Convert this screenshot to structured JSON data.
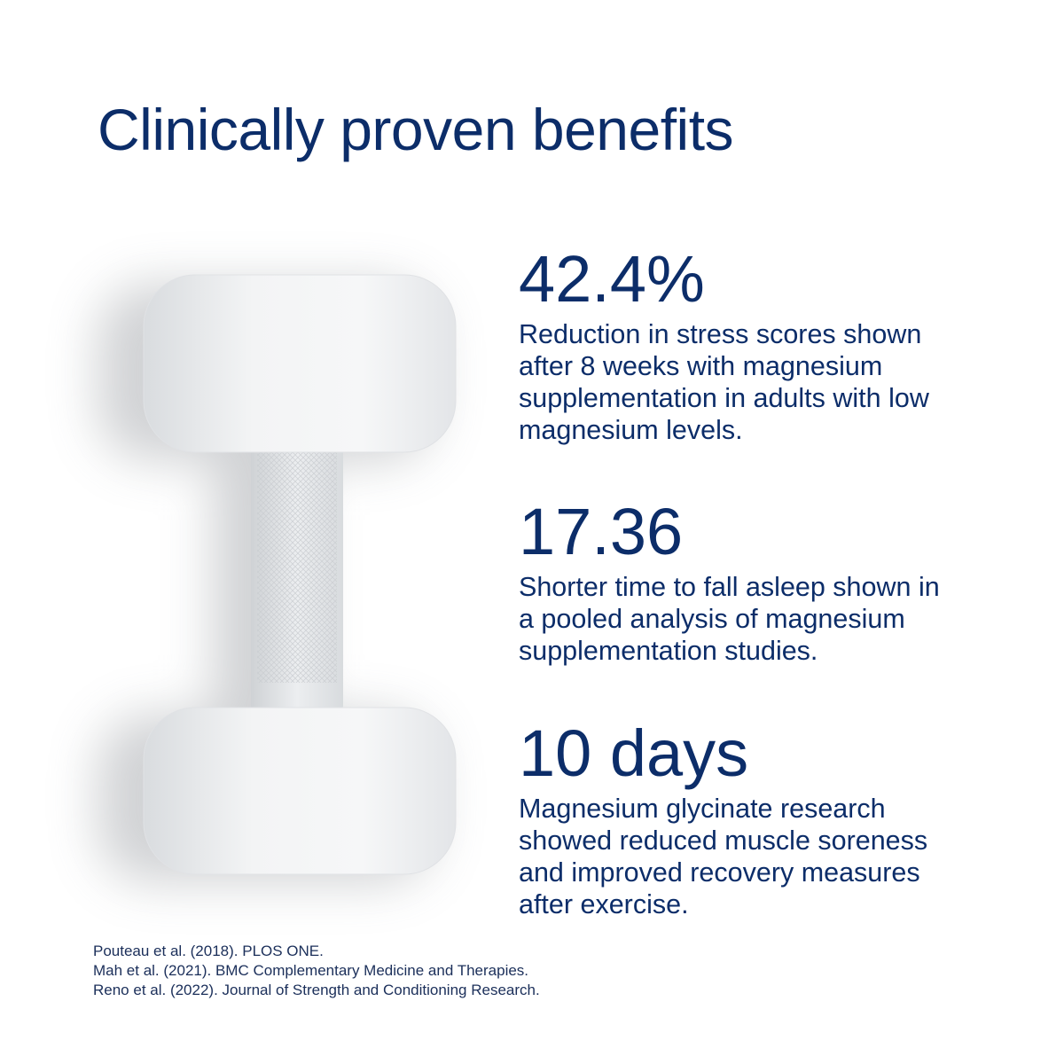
{
  "header": {
    "title": "Clinically proven benefits"
  },
  "stats": [
    {
      "value": "42.4%",
      "description": [
        "Reduction in stress scores shown",
        "after 8 weeks with magnesium",
        "supplementation in adults with low",
        "magnesium levels."
      ]
    },
    {
      "value": "17.36",
      "description": [
        "Shorter time to fall asleep shown in",
        "a pooled analysis of magnesium",
        "supplementation studies."
      ]
    },
    {
      "value": "10 days",
      "description": [
        "Magnesium glycinate research",
        "showed reduced muscle soreness",
        "and improved recovery measures",
        "after exercise."
      ]
    }
  ],
  "references": [
    "Pouteau et al. (2018). PLOS ONE.",
    "Mah et al. (2021). BMC Complementary Medicine and Therapies.",
    "Reno et al. (2022). Journal of Strength and Conditioning Research."
  ]
}
